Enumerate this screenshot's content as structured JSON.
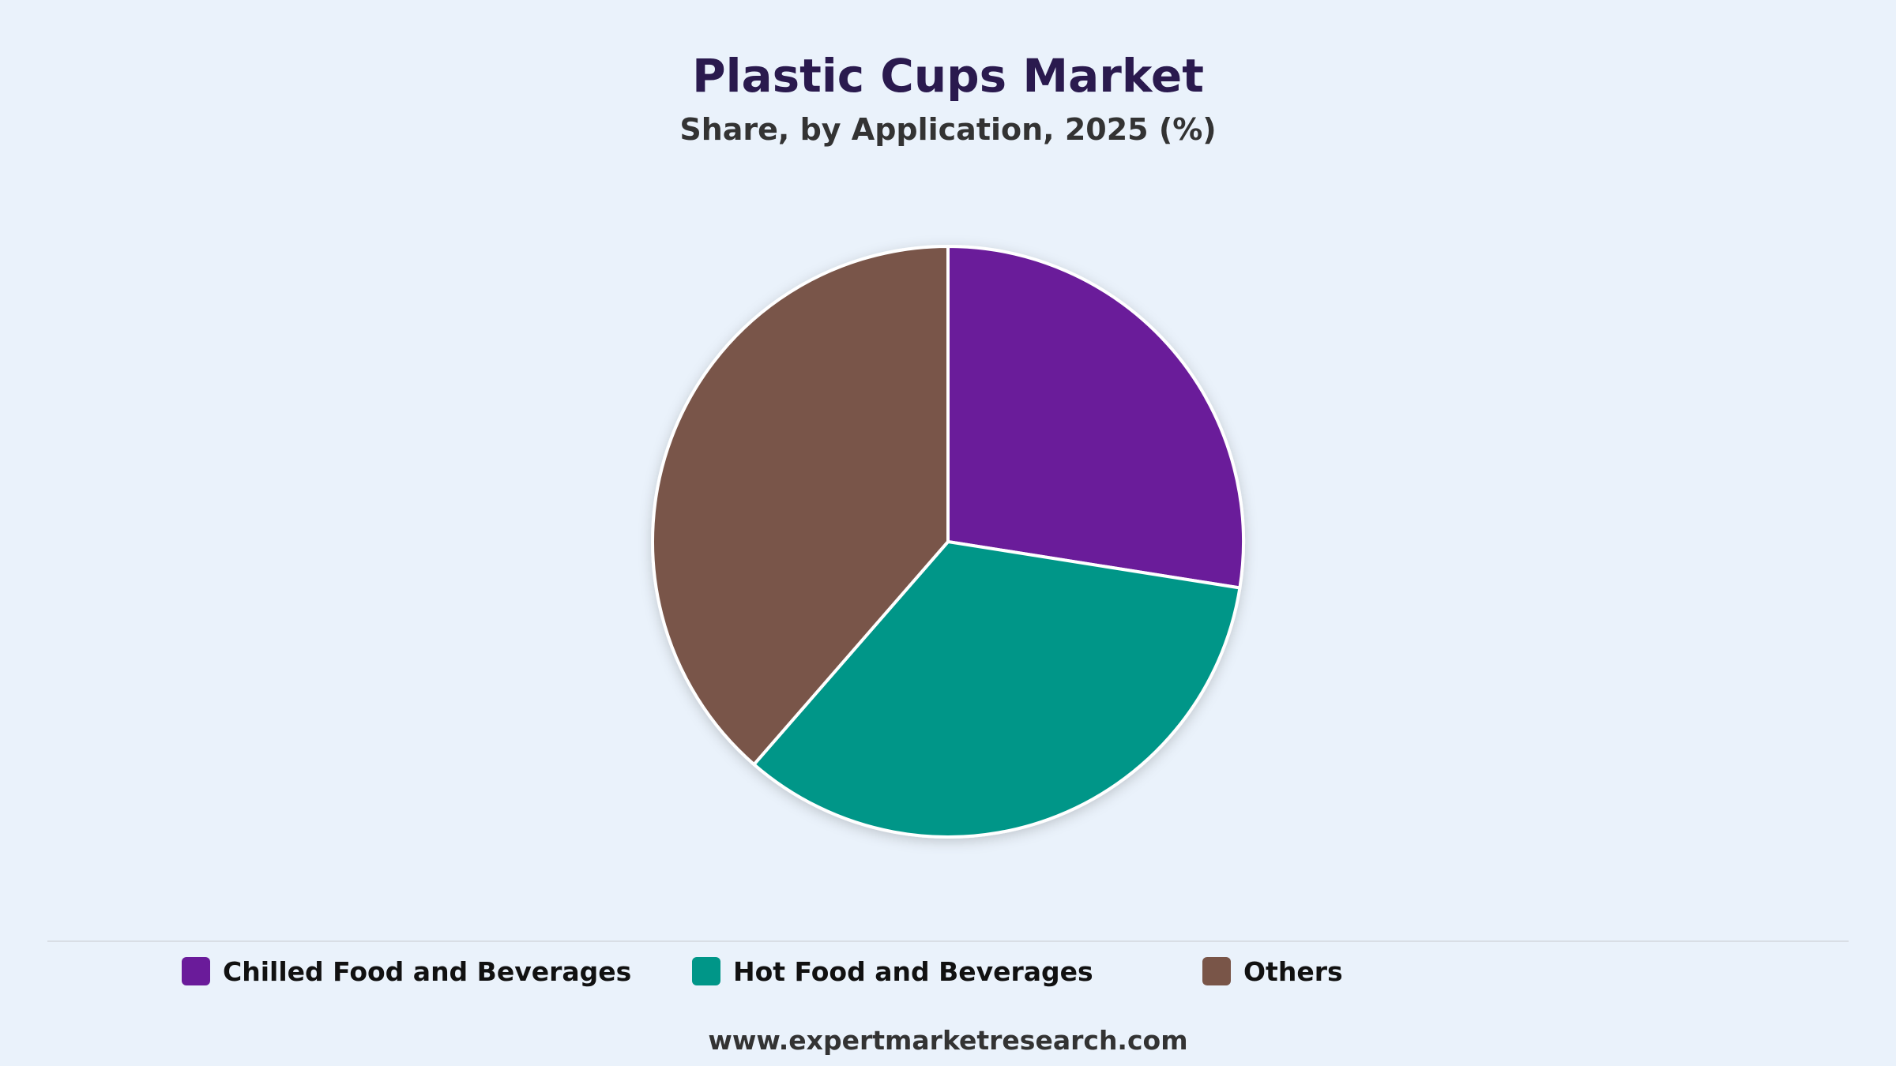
{
  "chart_data": {
    "type": "pie",
    "title": "Plastic Cups Market",
    "subtitle": "Share, by Application, 2025 (%)",
    "categories": [
      "Chilled Food and Beverages",
      "Hot Food and Beverages",
      "Others"
    ],
    "values": [
      27.5,
      33.9,
      38.6
    ],
    "colors": [
      "#6a1b9a",
      "#009688",
      "#795548"
    ],
    "legend": "bottom",
    "start_angle": "top, clockwise"
  },
  "legend": {
    "items": [
      {
        "label": "Chilled Food and Beverages",
        "color": "#6a1b9a"
      },
      {
        "label": "Hot Food and Beverages",
        "color": "#009688"
      },
      {
        "label": "Others",
        "color": "#795548"
      }
    ]
  },
  "footer": {
    "source": "www.expertmarketresearch.com"
  }
}
